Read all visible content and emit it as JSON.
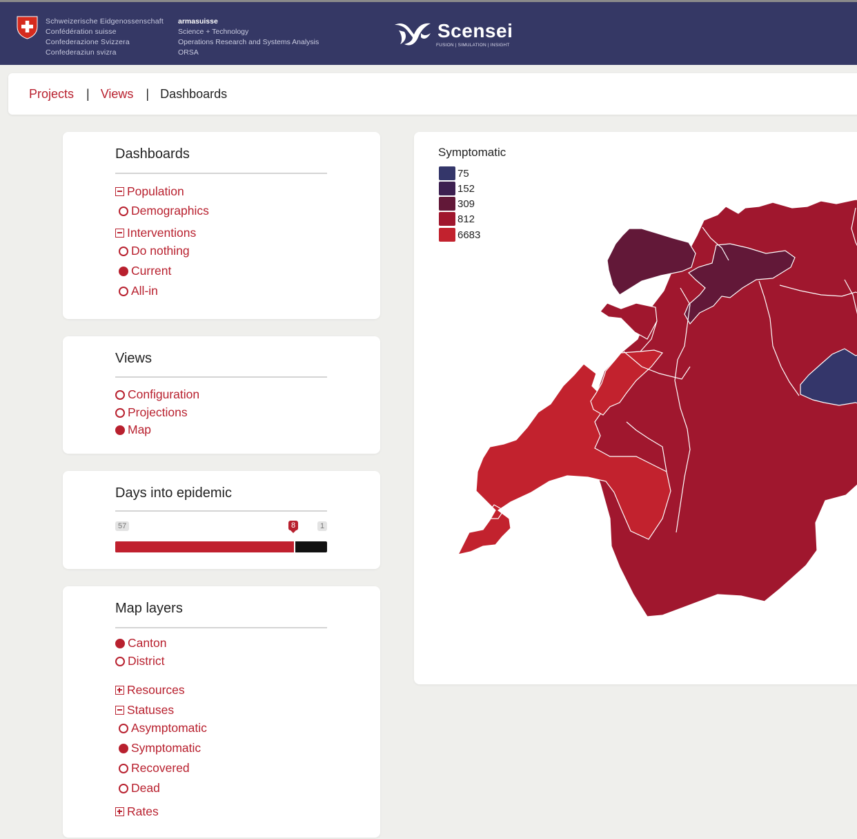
{
  "header": {
    "confederation": [
      "Schweizerische Eidgenossenschaft",
      "Confédération suisse",
      "Confederazione Svizzera",
      "Confederaziun svizra"
    ],
    "arma": {
      "brand": "armasuisse",
      "lines": [
        "Science + Technology",
        "Operations Research and Systems Analysis",
        "ORSA"
      ]
    },
    "logo": {
      "name": "Scensei",
      "tagline": "FUSION | SIMULATION | INSIGHT"
    }
  },
  "nav": {
    "projects": "Projects",
    "views": "Views",
    "current": "Dashboards",
    "separator": "|"
  },
  "dashboards_panel": {
    "title": "Dashboards",
    "groups": [
      {
        "label": "Population",
        "options": [
          {
            "label": "Demographics",
            "selected": false
          }
        ]
      },
      {
        "label": "Interventions",
        "options": [
          {
            "label": "Do nothing",
            "selected": false
          },
          {
            "label": "Current",
            "selected": true
          },
          {
            "label": "All-in",
            "selected": false
          }
        ]
      }
    ]
  },
  "views_panel": {
    "title": "Views",
    "options": [
      {
        "label": "Configuration",
        "selected": false
      },
      {
        "label": "Projections",
        "selected": false
      },
      {
        "label": "Map",
        "selected": true
      }
    ]
  },
  "days_panel": {
    "title": "Days into epidemic",
    "max_label": "57",
    "current_label": "8",
    "min_label": "1",
    "fill_fraction": 0.85
  },
  "map_layers_panel": {
    "title": "Map layers",
    "levels": [
      {
        "label": "Canton",
        "selected": true
      },
      {
        "label": "District",
        "selected": false
      }
    ],
    "resources_label": "Resources",
    "statuses_label": "Statuses",
    "statuses": [
      {
        "label": "Asymptomatic",
        "selected": false
      },
      {
        "label": "Symptomatic",
        "selected": true
      },
      {
        "label": "Recovered",
        "selected": false
      },
      {
        "label": "Dead",
        "selected": false
      }
    ],
    "rates_label": "Rates"
  },
  "map": {
    "legend_title": "Symptomatic",
    "legend": [
      {
        "value": "75",
        "color": "#34366a"
      },
      {
        "value": "152",
        "color": "#3c1f50"
      },
      {
        "value": "309",
        "color": "#621838"
      },
      {
        "value": "812",
        "color": "#a0172e"
      },
      {
        "value": "6683",
        "color": "#c2222e"
      }
    ]
  },
  "colors": {
    "accent": "#b8202e",
    "header_bg": "#353865"
  }
}
